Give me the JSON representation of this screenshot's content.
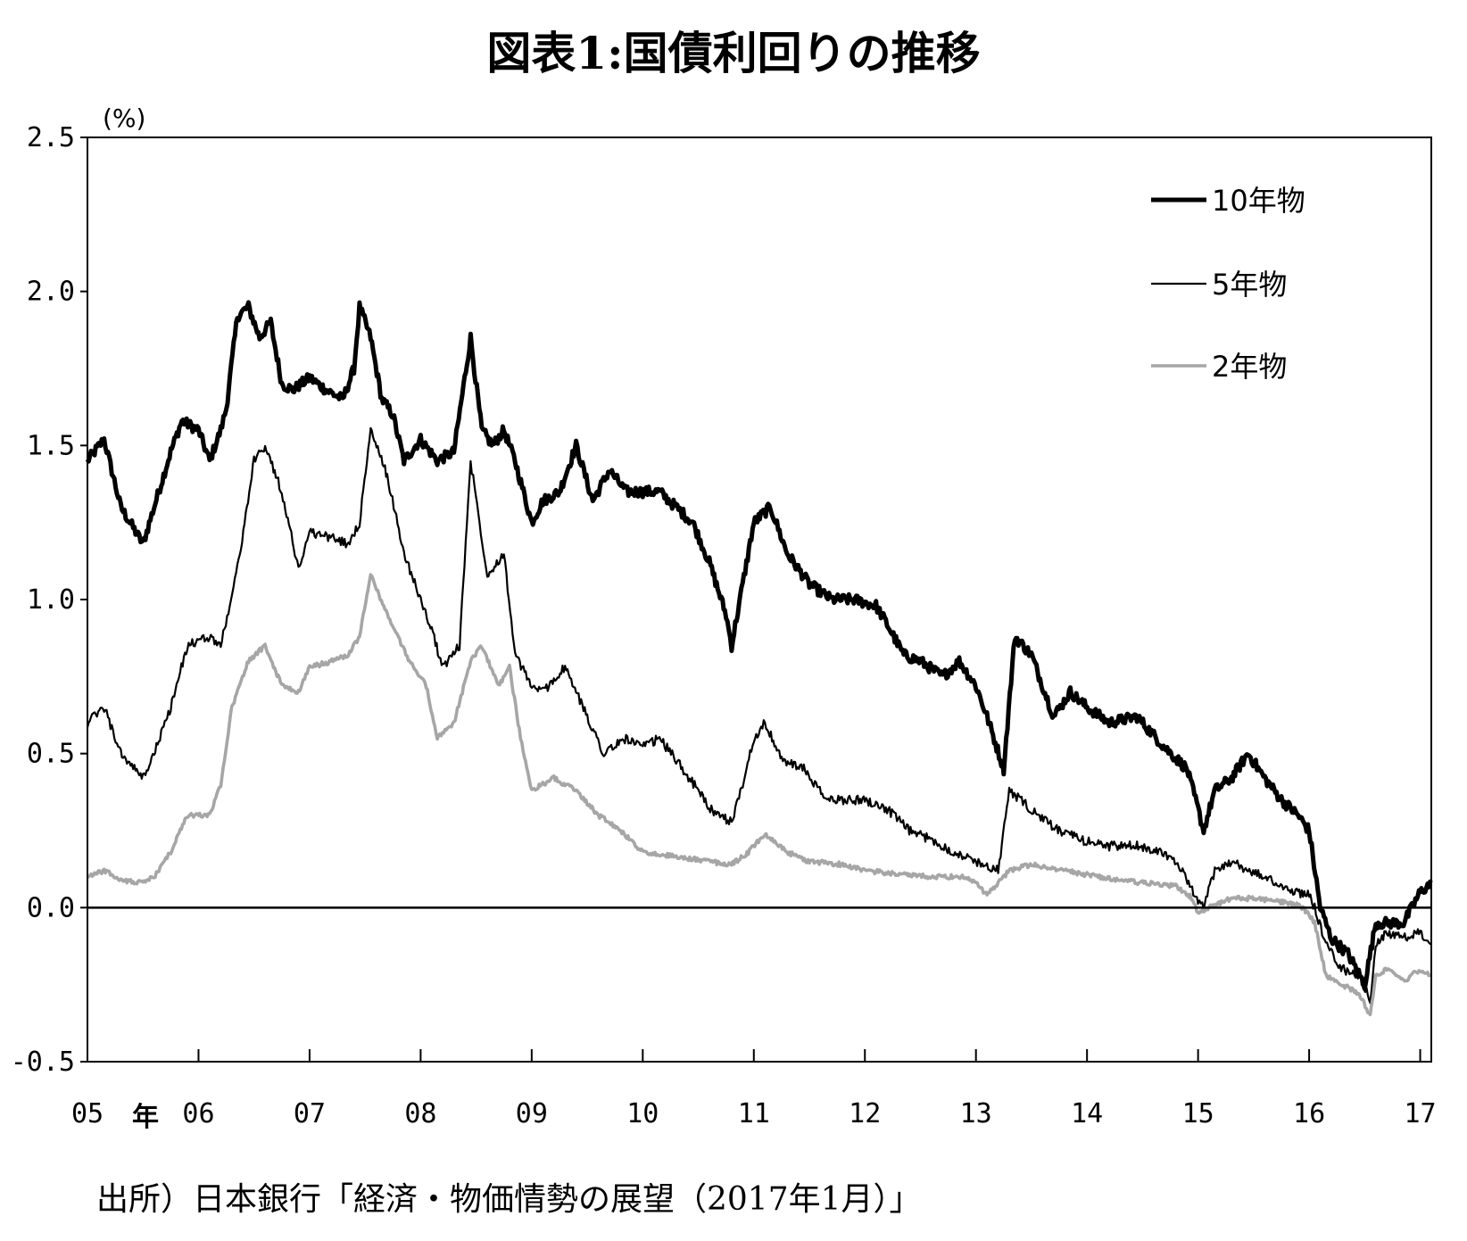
{
  "title": "図表1:国債利回りの推移",
  "source": "出所）日本銀行「経済・物価情勢の展望（2017年1月）」",
  "chart_data": {
    "type": "line",
    "ylabel": "(%)",
    "ylim": [
      -0.5,
      2.5
    ],
    "xlim": [
      2005.0,
      2017.1
    ],
    "yticks": [
      "2.5",
      "2.0",
      "1.5",
      "1.0",
      "0.5",
      "0.0",
      "-0.5"
    ],
    "xticks": [
      "05",
      "06",
      "07",
      "08",
      "09",
      "10",
      "11",
      "12",
      "13",
      "14",
      "15",
      "16",
      "17"
    ],
    "x_unit_label": "年",
    "legend_position": "top-right",
    "series": [
      {
        "name": "10年物",
        "color": "#000000",
        "x": [
          2005.0,
          2005.15,
          2005.3,
          2005.5,
          2005.6,
          2005.75,
          2005.85,
          2006.0,
          2006.1,
          2006.2,
          2006.25,
          2006.35,
          2006.45,
          2006.55,
          2006.65,
          2006.75,
          2006.85,
          2007.0,
          2007.15,
          2007.3,
          2007.4,
          2007.45,
          2007.55,
          2007.65,
          2007.75,
          2007.85,
          2008.0,
          2008.15,
          2008.3,
          2008.45,
          2008.55,
          2008.65,
          2008.75,
          2008.85,
          2009.0,
          2009.1,
          2009.25,
          2009.4,
          2009.55,
          2009.7,
          2009.85,
          2010.0,
          2010.15,
          2010.3,
          2010.45,
          2010.6,
          2010.75,
          2010.8,
          2010.9,
          2011.0,
          2011.15,
          2011.3,
          2011.5,
          2011.7,
          2011.9,
          2012.1,
          2012.2,
          2012.35,
          2012.5,
          2012.7,
          2012.85,
          2013.0,
          2013.1,
          2013.25,
          2013.35,
          2013.5,
          2013.7,
          2013.85,
          2014.0,
          2014.2,
          2014.45,
          2014.7,
          2014.9,
          2015.0,
          2015.05,
          2015.15,
          2015.3,
          2015.45,
          2015.6,
          2015.75,
          2015.9,
          2016.0,
          2016.1,
          2016.2,
          2016.35,
          2016.5,
          2016.6,
          2016.7,
          2016.85,
          2017.0,
          2017.1
        ],
        "values": [
          1.45,
          1.52,
          1.3,
          1.18,
          1.3,
          1.48,
          1.58,
          1.55,
          1.45,
          1.55,
          1.62,
          1.92,
          1.95,
          1.85,
          1.9,
          1.7,
          1.68,
          1.72,
          1.68,
          1.65,
          1.75,
          1.95,
          1.85,
          1.65,
          1.6,
          1.45,
          1.52,
          1.45,
          1.48,
          1.85,
          1.55,
          1.5,
          1.55,
          1.45,
          1.25,
          1.32,
          1.35,
          1.5,
          1.32,
          1.42,
          1.35,
          1.35,
          1.35,
          1.3,
          1.25,
          1.12,
          0.95,
          0.85,
          1.05,
          1.25,
          1.3,
          1.15,
          1.05,
          1.0,
          1.0,
          0.98,
          0.92,
          0.82,
          0.8,
          0.75,
          0.8,
          0.72,
          0.62,
          0.45,
          0.88,
          0.82,
          0.62,
          0.7,
          0.65,
          0.6,
          0.62,
          0.52,
          0.45,
          0.32,
          0.25,
          0.38,
          0.42,
          0.5,
          0.42,
          0.35,
          0.3,
          0.25,
          0.0,
          -0.1,
          -0.15,
          -0.25,
          -0.05,
          -0.05,
          -0.05,
          0.05,
          0.08
        ]
      },
      {
        "name": "5年物",
        "color": "#000000",
        "x": [
          2005.0,
          2005.15,
          2005.3,
          2005.5,
          2005.6,
          2005.75,
          2005.9,
          2006.1,
          2006.2,
          2006.35,
          2006.5,
          2006.6,
          2006.75,
          2006.9,
          2007.0,
          2007.2,
          2007.35,
          2007.45,
          2007.55,
          2007.7,
          2007.85,
          2008.0,
          2008.1,
          2008.2,
          2008.35,
          2008.45,
          2008.6,
          2008.75,
          2008.85,
          2009.0,
          2009.1,
          2009.3,
          2009.5,
          2009.65,
          2009.85,
          2010.0,
          2010.15,
          2010.3,
          2010.5,
          2010.65,
          2010.8,
          2010.9,
          2011.0,
          2011.1,
          2011.25,
          2011.45,
          2011.65,
          2011.85,
          2012.0,
          2012.2,
          2012.4,
          2012.6,
          2012.8,
          2013.0,
          2013.2,
          2013.3,
          2013.4,
          2013.55,
          2013.75,
          2013.95,
          2014.2,
          2014.45,
          2014.7,
          2014.85,
          2015.0,
          2015.05,
          2015.15,
          2015.3,
          2015.45,
          2015.6,
          2015.8,
          2016.0,
          2016.05,
          2016.15,
          2016.3,
          2016.45,
          2016.55,
          2016.6,
          2016.7,
          2016.85,
          2017.0,
          2017.1
        ],
        "values": [
          0.6,
          0.65,
          0.5,
          0.42,
          0.5,
          0.65,
          0.85,
          0.88,
          0.85,
          1.1,
          1.45,
          1.5,
          1.35,
          1.1,
          1.22,
          1.2,
          1.18,
          1.25,
          1.55,
          1.4,
          1.15,
          1.0,
          0.9,
          0.78,
          0.85,
          1.45,
          1.08,
          1.15,
          0.82,
          0.72,
          0.7,
          0.78,
          0.62,
          0.5,
          0.55,
          0.52,
          0.55,
          0.48,
          0.38,
          0.3,
          0.28,
          0.4,
          0.55,
          0.6,
          0.48,
          0.45,
          0.35,
          0.35,
          0.35,
          0.32,
          0.25,
          0.22,
          0.18,
          0.15,
          0.12,
          0.38,
          0.35,
          0.3,
          0.25,
          0.22,
          0.2,
          0.2,
          0.18,
          0.12,
          0.02,
          0.0,
          0.12,
          0.15,
          0.12,
          0.1,
          0.06,
          0.04,
          0.0,
          -0.12,
          -0.2,
          -0.22,
          -0.3,
          -0.12,
          -0.08,
          -0.1,
          -0.08,
          -0.12
        ]
      },
      {
        "name": "2年物",
        "color": "#a6a6a6",
        "x": [
          2005.0,
          2005.15,
          2005.3,
          2005.5,
          2005.6,
          2005.75,
          2005.9,
          2006.1,
          2006.2,
          2006.3,
          2006.45,
          2006.6,
          2006.75,
          2006.9,
          2007.0,
          2007.2,
          2007.35,
          2007.45,
          2007.55,
          2007.7,
          2007.9,
          2008.05,
          2008.15,
          2008.3,
          2008.45,
          2008.55,
          2008.7,
          2008.8,
          2008.9,
          2009.0,
          2009.2,
          2009.4,
          2009.6,
          2009.8,
          2010.0,
          2010.2,
          2010.4,
          2010.6,
          2010.8,
          2010.95,
          2011.1,
          2011.3,
          2011.5,
          2011.8,
          2012.0,
          2012.3,
          2012.6,
          2012.9,
          2013.0,
          2013.1,
          2013.3,
          2013.5,
          2013.8,
          2014.1,
          2014.5,
          2014.8,
          2014.95,
          2015.0,
          2015.1,
          2015.3,
          2015.5,
          2015.7,
          2015.9,
          2016.0,
          2016.05,
          2016.15,
          2016.3,
          2016.45,
          2016.55,
          2016.6,
          2016.7,
          2016.85,
          2017.0,
          2017.1
        ],
        "values": [
          0.1,
          0.12,
          0.09,
          0.08,
          0.1,
          0.18,
          0.3,
          0.3,
          0.4,
          0.65,
          0.8,
          0.85,
          0.72,
          0.7,
          0.78,
          0.8,
          0.82,
          0.88,
          1.08,
          0.95,
          0.8,
          0.72,
          0.55,
          0.6,
          0.8,
          0.85,
          0.72,
          0.78,
          0.55,
          0.38,
          0.42,
          0.38,
          0.3,
          0.25,
          0.18,
          0.17,
          0.16,
          0.15,
          0.14,
          0.18,
          0.24,
          0.18,
          0.15,
          0.14,
          0.12,
          0.11,
          0.1,
          0.1,
          0.08,
          0.04,
          0.12,
          0.14,
          0.12,
          0.1,
          0.08,
          0.07,
          0.03,
          -0.02,
          0.0,
          0.03,
          0.03,
          0.02,
          0.01,
          -0.02,
          -0.05,
          -0.22,
          -0.25,
          -0.28,
          -0.35,
          -0.22,
          -0.2,
          -0.24,
          -0.2,
          -0.22
        ]
      }
    ]
  }
}
